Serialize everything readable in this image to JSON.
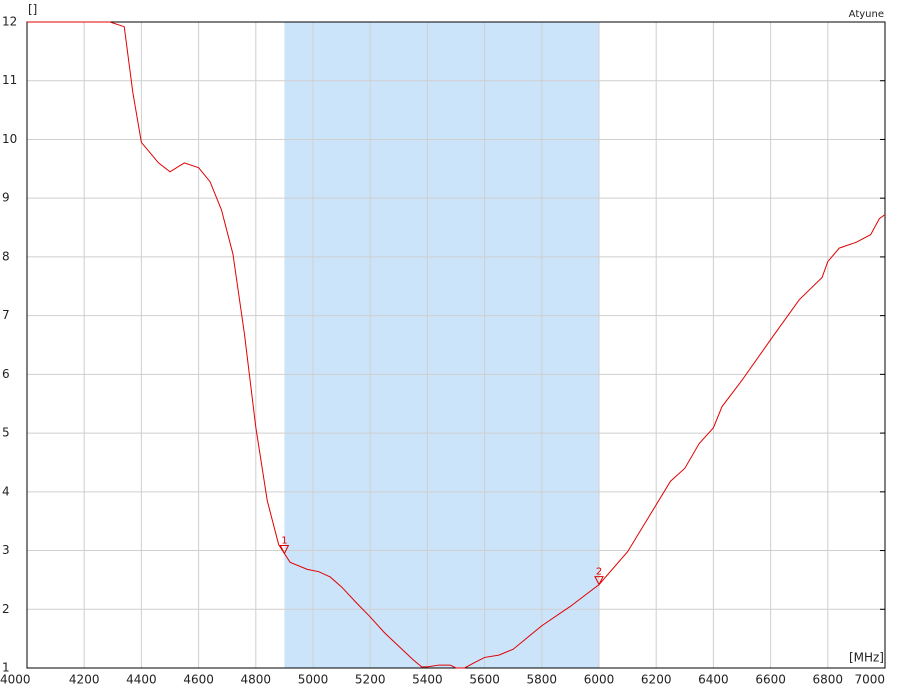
{
  "chart_data": {
    "type": "line",
    "y_unit_label": "[]",
    "x_unit_label": "[MHz]",
    "xlim": [
      4000,
      7000
    ],
    "ylim": [
      1,
      12
    ],
    "xticks": [
      4000,
      4200,
      4400,
      4600,
      4800,
      5000,
      5200,
      5400,
      5600,
      5800,
      6000,
      6200,
      6400,
      6600,
      6800,
      7000
    ],
    "yticks": [
      1,
      2,
      3,
      4,
      5,
      6,
      7,
      8,
      9,
      10,
      11,
      12
    ],
    "grid": true,
    "highlight": {
      "from": 4900,
      "to": 6000,
      "color": "#cce4fa"
    },
    "x": [
      4000,
      4290,
      4340,
      4370,
      4400,
      4460,
      4500,
      4550,
      4600,
      4640,
      4680,
      4720,
      4760,
      4800,
      4840,
      4880,
      4900,
      4920,
      4980,
      5020,
      5060,
      5100,
      5150,
      5200,
      5250,
      5300,
      5350,
      5380,
      5400,
      5440,
      5480,
      5500,
      5530,
      5560,
      5600,
      5650,
      5700,
      5800,
      5900,
      6000,
      6100,
      6200,
      6250,
      6300,
      6350,
      6400,
      6430,
      6500,
      6600,
      6700,
      6780,
      6800,
      6840,
      6900,
      6950,
      6980,
      7000
    ],
    "series": [
      {
        "name": "Atyune",
        "color": "#e00000",
        "values": [
          12,
          12,
          11.92,
          10.8,
          9.95,
          9.6,
          9.45,
          9.6,
          9.52,
          9.28,
          8.8,
          8.05,
          6.7,
          5.1,
          3.85,
          3.1,
          2.95,
          2.8,
          2.68,
          2.64,
          2.55,
          2.38,
          2.12,
          1.87,
          1.6,
          1.37,
          1.14,
          1.02,
          1.02,
          1.05,
          1.05,
          1.0,
          1.0,
          1.08,
          1.18,
          1.22,
          1.32,
          1.72,
          2.05,
          2.42,
          2.98,
          3.78,
          4.18,
          4.4,
          4.82,
          5.09,
          5.45,
          5.9,
          6.59,
          7.27,
          7.65,
          7.92,
          8.15,
          8.25,
          8.38,
          8.65,
          8.72
        ]
      }
    ],
    "markers": [
      {
        "label": "1",
        "x": 4900,
        "y": 2.95
      },
      {
        "label": "2",
        "x": 6000,
        "y": 2.42
      }
    ]
  }
}
